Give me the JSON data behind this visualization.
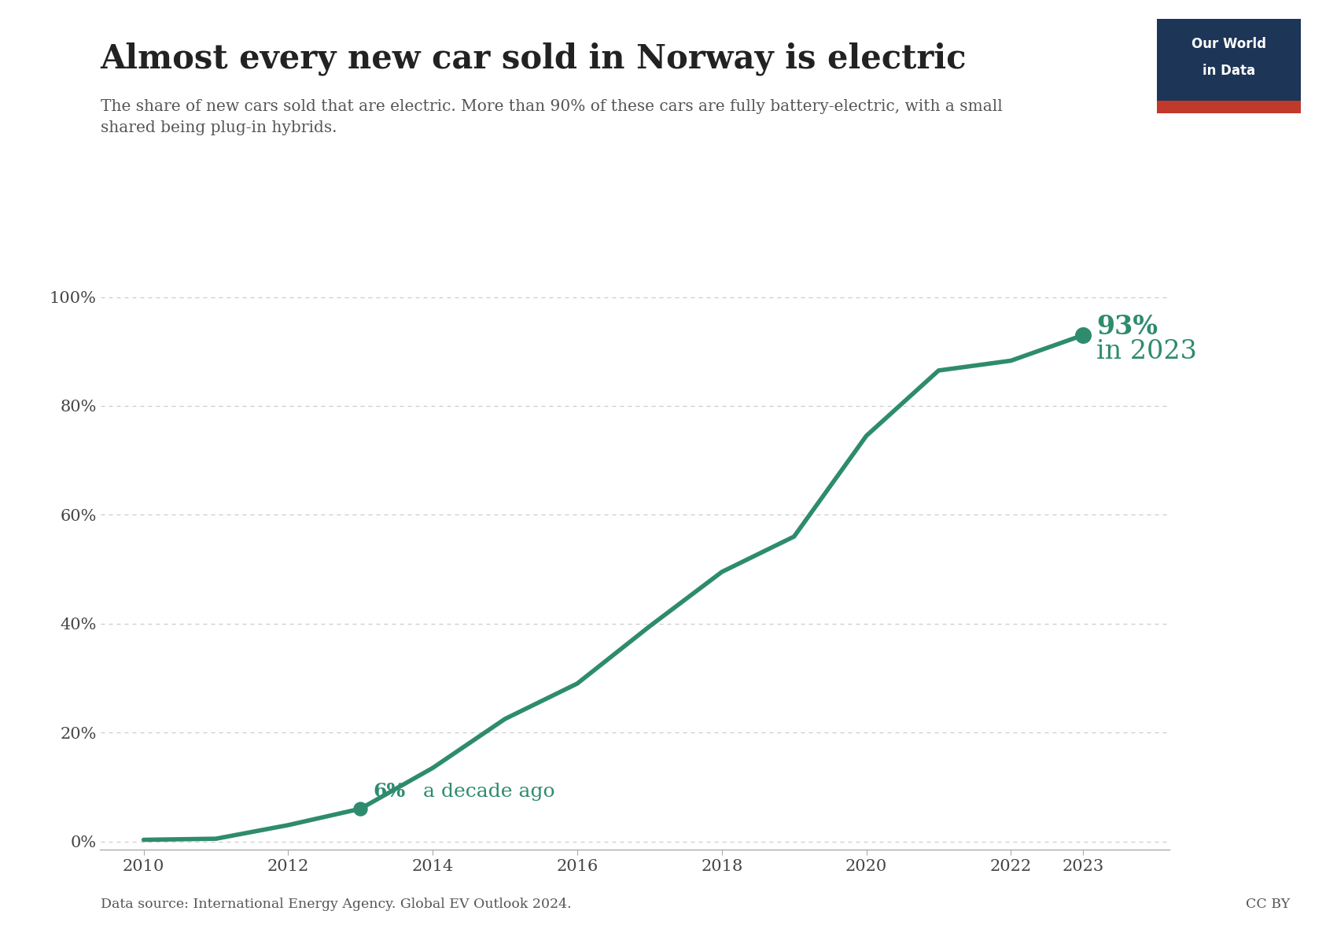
{
  "title": "Almost every new car sold in Norway is electric",
  "subtitle": "The share of new cars sold that are electric. More than 90% of these cars are fully battery-electric, with a small\nshared being plug-in hybrids.",
  "source": "Data source: International Energy Agency. Global EV Outlook 2024.",
  "cc_by": "CC BY",
  "years": [
    2010,
    2011,
    2012,
    2013,
    2014,
    2015,
    2016,
    2017,
    2018,
    2019,
    2020,
    2021,
    2022,
    2023
  ],
  "values": [
    0.003,
    0.005,
    0.03,
    0.06,
    0.135,
    0.225,
    0.29,
    0.395,
    0.495,
    0.56,
    0.745,
    0.865,
    0.883,
    0.93
  ],
  "line_color": "#2E8B6E",
  "annotation_2013_bold": "6%",
  "annotation_2013_normal": " a decade ago",
  "annotation_2023_bold": "93%",
  "annotation_2023_normal": "in 2023",
  "bg_color": "#ffffff",
  "grid_color": "#cccccc",
  "axis_color": "#aaaaaa",
  "text_color": "#444444",
  "subtitle_color": "#555555",
  "logo_bg": "#1d3557",
  "logo_red": "#c0392b",
  "ytick_labels": [
    "0%",
    "20%",
    "40%",
    "60%",
    "80%",
    "100%"
  ],
  "ytick_values": [
    0.0,
    0.2,
    0.4,
    0.6,
    0.8,
    1.0
  ],
  "xtick_labels": [
    "2010",
    "2012",
    "2014",
    "2016",
    "2018",
    "2020",
    "2022",
    "2023"
  ],
  "xtick_values": [
    2010,
    2012,
    2014,
    2016,
    2018,
    2020,
    2022,
    2023
  ]
}
